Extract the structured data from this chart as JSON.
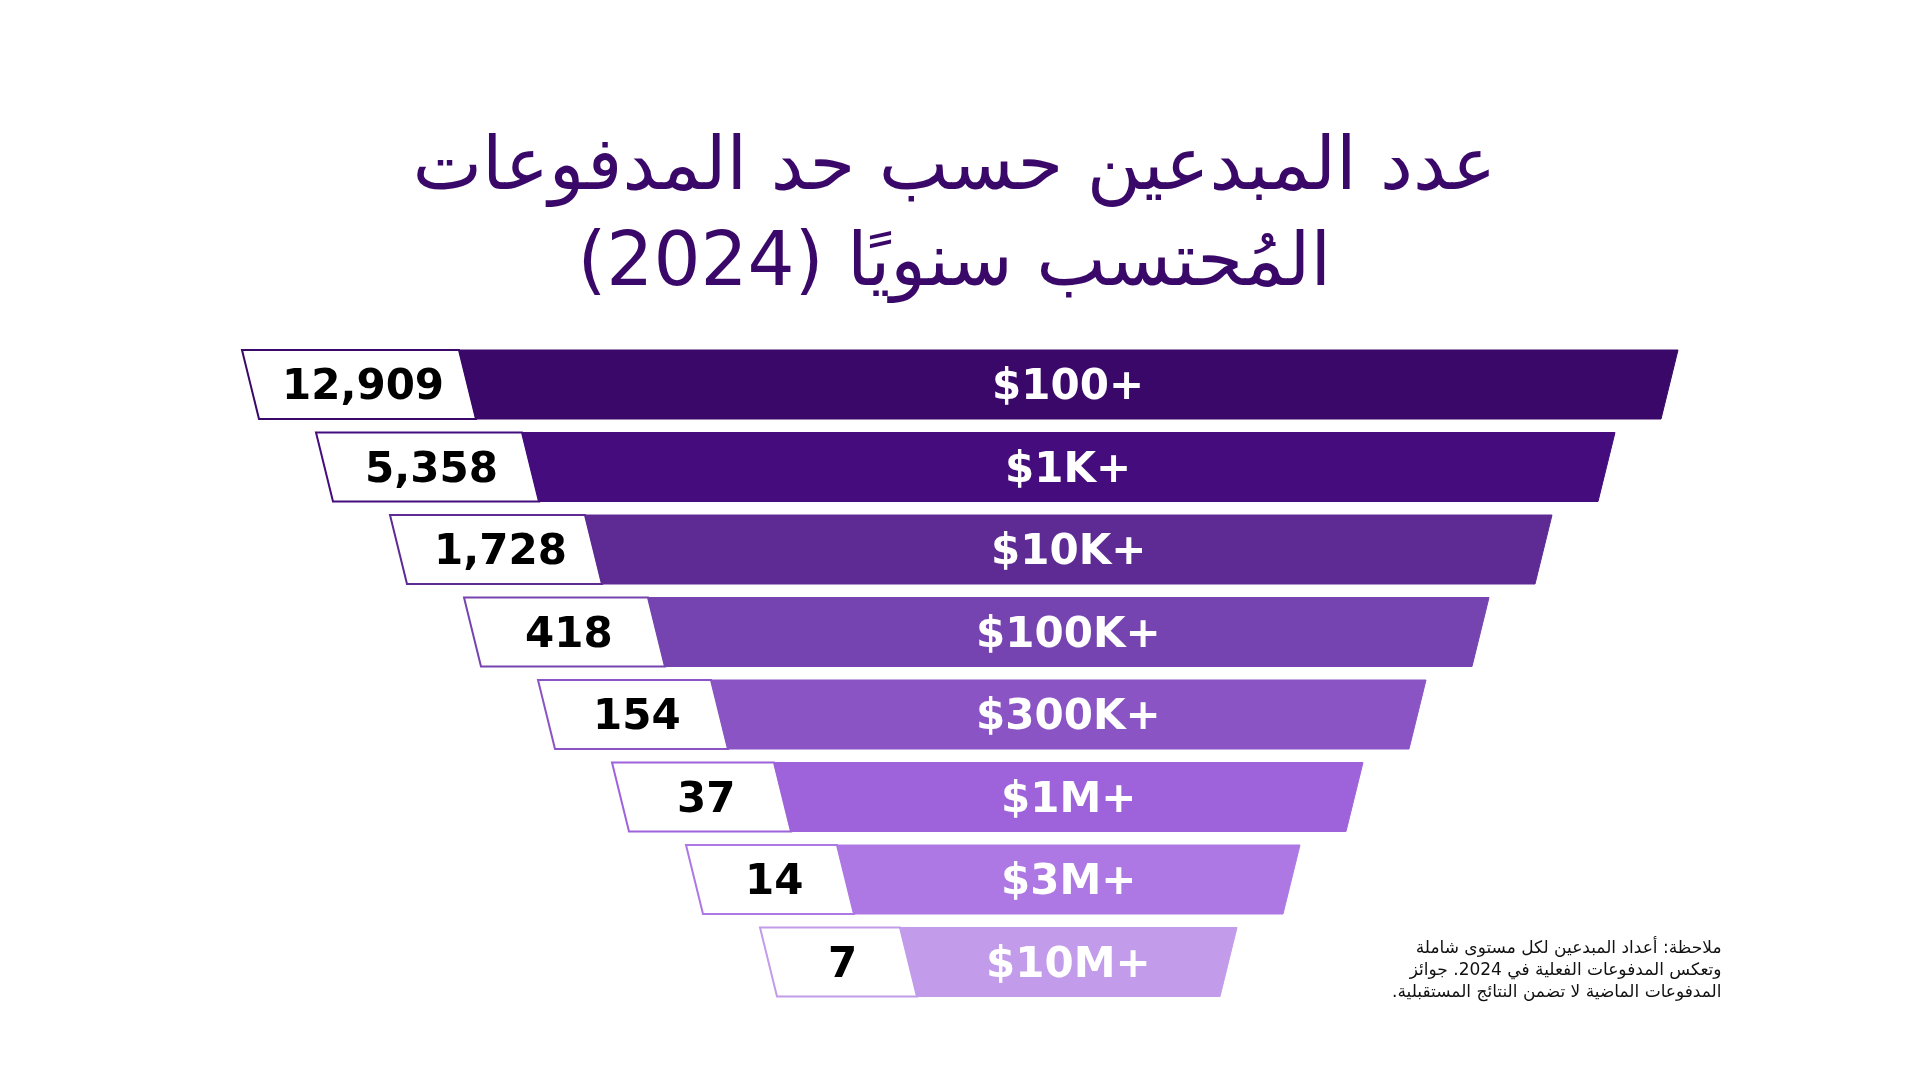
{
  "chart_data": {
    "type": "other",
    "title": "عدد المبدعين حسب حد المدفوعات\nالمُحتسب سنويًا (2024)",
    "categories": [
      "$100+",
      "$1K+",
      "$10K+",
      "$100K+",
      "$300K+",
      "$1M+",
      "$3M+",
      "$10M+"
    ],
    "values": [
      12909,
      5358,
      1728,
      418,
      154,
      37,
      14,
      7
    ],
    "value_labels": [
      "12,909",
      "5,358",
      "1,728",
      "418",
      "154",
      "37",
      "14",
      "7"
    ],
    "colors": [
      "#3a0868",
      "#450c7e",
      "#5e2a93",
      "#7544b0",
      "#8a54c4",
      "#9e63db",
      "#ad78e4",
      "#c29bea"
    ],
    "annotations": [
      "ملاحظة: أعداد المبدعين لكل مستوى شاملة\nوتعكس المدفوعات الفعلية في 2024. جوائز\nالمدفوعات الماضية لا تضمن النتائج المستقبلية."
    ]
  }
}
